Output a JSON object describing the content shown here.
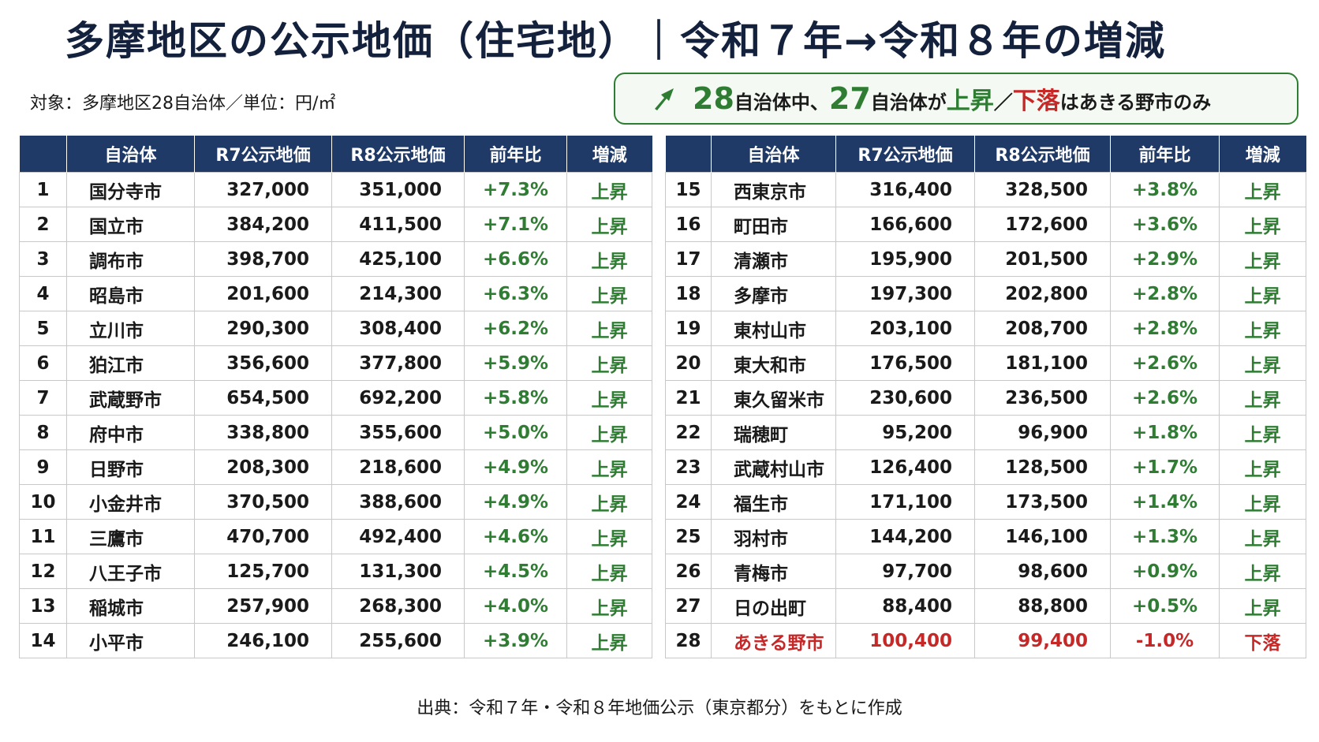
{
  "title": "多摩地区の公示地価（住宅地）｜令和７年→令和８年の増減",
  "subject": "対象：多摩地区28自治体／単位：円/㎡",
  "callout": {
    "n_total": "28",
    "t1": "自治体中、",
    "n_up": "27",
    "t2": "自治体が",
    "up": "上昇",
    "slash": "／",
    "down": "下落",
    "t3": "はあきる野市のみ",
    "arrow_icon": "up-arrow-icon",
    "color_up": "#2e7d32",
    "color_down": "#c62828"
  },
  "table": {
    "headers": [
      "",
      "自治体",
      "R7公示地価",
      "R8公示地価",
      "前年比",
      "増減"
    ],
    "left_rows": [
      {
        "rank": "1",
        "name": "国分寺市",
        "r7": "327,000",
        "r8": "351,000",
        "pct": "+7.3%",
        "chg": "上昇"
      },
      {
        "rank": "2",
        "name": "国立市",
        "r7": "384,200",
        "r8": "411,500",
        "pct": "+7.1%",
        "chg": "上昇"
      },
      {
        "rank": "3",
        "name": "調布市",
        "r7": "398,700",
        "r8": "425,100",
        "pct": "+6.6%",
        "chg": "上昇"
      },
      {
        "rank": "4",
        "name": "昭島市",
        "r7": "201,600",
        "r8": "214,300",
        "pct": "+6.3%",
        "chg": "上昇"
      },
      {
        "rank": "5",
        "name": "立川市",
        "r7": "290,300",
        "r8": "308,400",
        "pct": "+6.2%",
        "chg": "上昇"
      },
      {
        "rank": "6",
        "name": "狛江市",
        "r7": "356,600",
        "r8": "377,800",
        "pct": "+5.9%",
        "chg": "上昇"
      },
      {
        "rank": "7",
        "name": "武蔵野市",
        "r7": "654,500",
        "r8": "692,200",
        "pct": "+5.8%",
        "chg": "上昇"
      },
      {
        "rank": "8",
        "name": "府中市",
        "r7": "338,800",
        "r8": "355,600",
        "pct": "+5.0%",
        "chg": "上昇"
      },
      {
        "rank": "9",
        "name": "日野市",
        "r7": "208,300",
        "r8": "218,600",
        "pct": "+4.9%",
        "chg": "上昇"
      },
      {
        "rank": "10",
        "name": "小金井市",
        "r7": "370,500",
        "r8": "388,600",
        "pct": "+4.9%",
        "chg": "上昇"
      },
      {
        "rank": "11",
        "name": "三鷹市",
        "r7": "470,700",
        "r8": "492,400",
        "pct": "+4.6%",
        "chg": "上昇"
      },
      {
        "rank": "12",
        "name": "八王子市",
        "r7": "125,700",
        "r8": "131,300",
        "pct": "+4.5%",
        "chg": "上昇"
      },
      {
        "rank": "13",
        "name": "稲城市",
        "r7": "257,900",
        "r8": "268,300",
        "pct": "+4.0%",
        "chg": "上昇"
      },
      {
        "rank": "14",
        "name": "小平市",
        "r7": "246,100",
        "r8": "255,600",
        "pct": "+3.9%",
        "chg": "上昇"
      }
    ],
    "right_rows": [
      {
        "rank": "15",
        "name": "西東京市",
        "r7": "316,400",
        "r8": "328,500",
        "pct": "+3.8%",
        "chg": "上昇"
      },
      {
        "rank": "16",
        "name": "町田市",
        "r7": "166,600",
        "r8": "172,600",
        "pct": "+3.6%",
        "chg": "上昇"
      },
      {
        "rank": "17",
        "name": "清瀬市",
        "r7": "195,900",
        "r8": "201,500",
        "pct": "+2.9%",
        "chg": "上昇"
      },
      {
        "rank": "18",
        "name": "多摩市",
        "r7": "197,300",
        "r8": "202,800",
        "pct": "+2.8%",
        "chg": "上昇"
      },
      {
        "rank": "19",
        "name": "東村山市",
        "r7": "203,100",
        "r8": "208,700",
        "pct": "+2.8%",
        "chg": "上昇"
      },
      {
        "rank": "20",
        "name": "東大和市",
        "r7": "176,500",
        "r8": "181,100",
        "pct": "+2.6%",
        "chg": "上昇"
      },
      {
        "rank": "21",
        "name": "東久留米市",
        "r7": "230,600",
        "r8": "236,500",
        "pct": "+2.6%",
        "chg": "上昇"
      },
      {
        "rank": "22",
        "name": "瑞穂町",
        "r7": "95,200",
        "r8": "96,900",
        "pct": "+1.8%",
        "chg": "上昇"
      },
      {
        "rank": "23",
        "name": "武蔵村山市",
        "r7": "126,400",
        "r8": "128,500",
        "pct": "+1.7%",
        "chg": "上昇"
      },
      {
        "rank": "24",
        "name": "福生市",
        "r7": "171,100",
        "r8": "173,500",
        "pct": "+1.4%",
        "chg": "上昇"
      },
      {
        "rank": "25",
        "name": "羽村市",
        "r7": "144,200",
        "r8": "146,100",
        "pct": "+1.3%",
        "chg": "上昇"
      },
      {
        "rank": "26",
        "name": "青梅市",
        "r7": "97,700",
        "r8": "98,600",
        "pct": "+0.9%",
        "chg": "上昇"
      },
      {
        "rank": "27",
        "name": "日の出町",
        "r7": "88,400",
        "r8": "88,800",
        "pct": "+0.5%",
        "chg": "上昇"
      },
      {
        "rank": "28",
        "name": "あきる野市",
        "r7": "100,400",
        "r8": "99,400",
        "pct": "-1.0%",
        "chg": "下落",
        "negative": true
      }
    ],
    "header_color": "#1f3a67"
  },
  "source": "出典：令和７年・令和８年地価公示（東京都分）をもとに作成"
}
